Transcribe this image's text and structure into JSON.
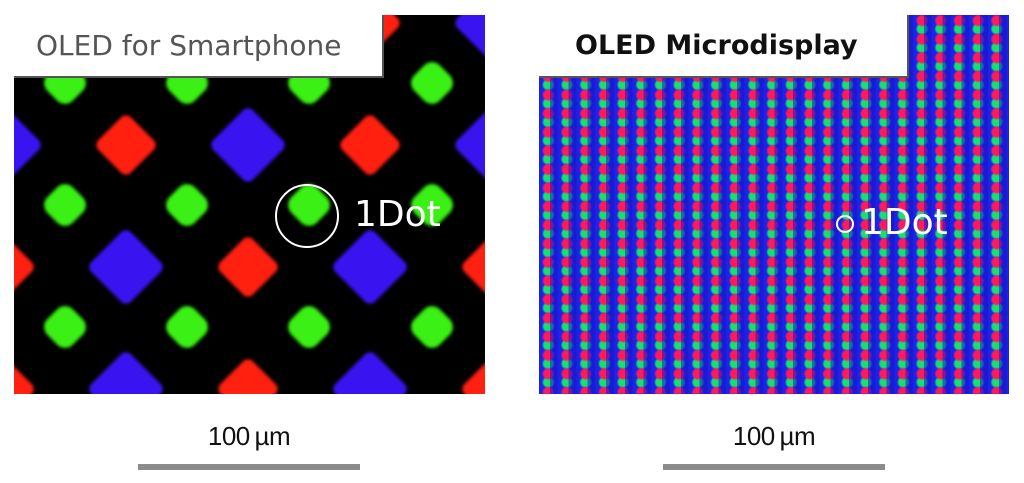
{
  "panels": {
    "left": {
      "title": "OLED for Smartphone",
      "annotation": "1Dot",
      "scale_label": "100 µm",
      "pixel_colors": {
        "green": "#3af014",
        "red": "#ff2010",
        "blue": "#3a14f0",
        "background": "#000000"
      }
    },
    "right": {
      "title": "OLED Microdisplay",
      "annotation": "1Dot",
      "scale_label": "100 µm",
      "pixel_colors": {
        "green": "#18e070",
        "red": "#ff1a5c",
        "blue": "#1c22e8"
      }
    }
  },
  "scale_bar_color": "#8c8c8c"
}
